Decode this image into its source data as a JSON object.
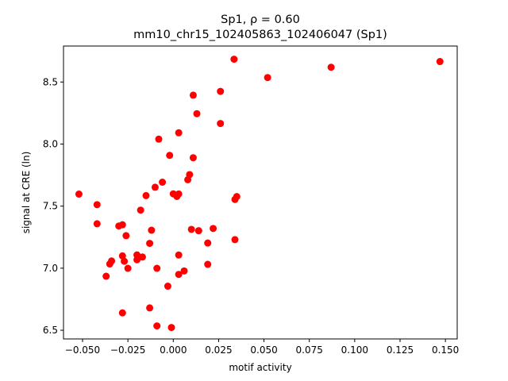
{
  "chart_data": {
    "type": "scatter",
    "title_line1": "Sp1, ρ = 0.60",
    "title_line2": "mm10_chr15_102405863_102406047 (Sp1)",
    "xlabel": "motif activity",
    "ylabel": "signal at CRE (ln)",
    "xlim": [
      -0.0605,
      0.1565
    ],
    "ylim": [
      6.43,
      8.79
    ],
    "xticks": [
      {
        "value": -0.05,
        "label": "−0.050"
      },
      {
        "value": -0.025,
        "label": "−0.025"
      },
      {
        "value": 0.0,
        "label": "0.000"
      },
      {
        "value": 0.025,
        "label": "0.025"
      },
      {
        "value": 0.05,
        "label": "0.050"
      },
      {
        "value": 0.075,
        "label": "0.075"
      },
      {
        "value": 0.1,
        "label": "0.100"
      },
      {
        "value": 0.125,
        "label": "0.125"
      },
      {
        "value": 0.15,
        "label": "0.150"
      }
    ],
    "yticks": [
      {
        "value": 6.5,
        "label": "6.5"
      },
      {
        "value": 7.0,
        "label": "7.0"
      },
      {
        "value": 7.5,
        "label": "7.5"
      },
      {
        "value": 8.0,
        "label": "8.0"
      },
      {
        "value": 8.5,
        "label": "8.5"
      }
    ],
    "grid": false,
    "marker_color": "#ff0000",
    "points": [
      {
        "x": 0.147,
        "y": 8.665
      },
      {
        "x": 0.087,
        "y": 8.619
      },
      {
        "x": 0.052,
        "y": 8.536
      },
      {
        "x": 0.0335,
        "y": 8.684
      },
      {
        "x": 0.026,
        "y": 8.425
      },
      {
        "x": 0.011,
        "y": 8.394
      },
      {
        "x": 0.013,
        "y": 8.245
      },
      {
        "x": 0.026,
        "y": 8.166
      },
      {
        "x": 0.003,
        "y": 8.091
      },
      {
        "x": -0.008,
        "y": 8.04
      },
      {
        "x": -0.002,
        "y": 7.909
      },
      {
        "x": 0.011,
        "y": 7.89
      },
      {
        "x": 0.009,
        "y": 7.754
      },
      {
        "x": 0.008,
        "y": 7.713
      },
      {
        "x": -0.006,
        "y": 7.693
      },
      {
        "x": -0.01,
        "y": 7.652
      },
      {
        "x": 0.0,
        "y": 7.599
      },
      {
        "x": 0.003,
        "y": 7.598
      },
      {
        "x": 0.002,
        "y": 7.578
      },
      {
        "x": -0.015,
        "y": 7.585
      },
      {
        "x": 0.035,
        "y": 7.577
      },
      {
        "x": 0.034,
        "y": 7.554
      },
      {
        "x": -0.052,
        "y": 7.597
      },
      {
        "x": -0.042,
        "y": 7.512
      },
      {
        "x": -0.018,
        "y": 7.468
      },
      {
        "x": -0.042,
        "y": 7.358
      },
      {
        "x": -0.028,
        "y": 7.35
      },
      {
        "x": -0.03,
        "y": 7.34
      },
      {
        "x": 0.022,
        "y": 7.32
      },
      {
        "x": 0.01,
        "y": 7.313
      },
      {
        "x": 0.014,
        "y": 7.302
      },
      {
        "x": -0.012,
        "y": 7.306
      },
      {
        "x": -0.026,
        "y": 7.262
      },
      {
        "x": 0.034,
        "y": 7.23
      },
      {
        "x": 0.019,
        "y": 7.203
      },
      {
        "x": -0.013,
        "y": 7.2
      },
      {
        "x": 0.003,
        "y": 7.106
      },
      {
        "x": -0.02,
        "y": 7.107
      },
      {
        "x": -0.017,
        "y": 7.09
      },
      {
        "x": -0.02,
        "y": 7.068
      },
      {
        "x": -0.028,
        "y": 7.099
      },
      {
        "x": -0.027,
        "y": 7.056
      },
      {
        "x": -0.034,
        "y": 7.058
      },
      {
        "x": -0.035,
        "y": 7.034
      },
      {
        "x": 0.019,
        "y": 7.031
      },
      {
        "x": -0.009,
        "y": 6.999
      },
      {
        "x": -0.025,
        "y": 6.999
      },
      {
        "x": 0.006,
        "y": 6.978
      },
      {
        "x": 0.003,
        "y": 6.95
      },
      {
        "x": -0.037,
        "y": 6.935
      },
      {
        "x": -0.003,
        "y": 6.855
      },
      {
        "x": -0.013,
        "y": 6.68
      },
      {
        "x": -0.028,
        "y": 6.64
      },
      {
        "x": -0.009,
        "y": 6.535
      },
      {
        "x": -0.001,
        "y": 6.522
      }
    ]
  }
}
